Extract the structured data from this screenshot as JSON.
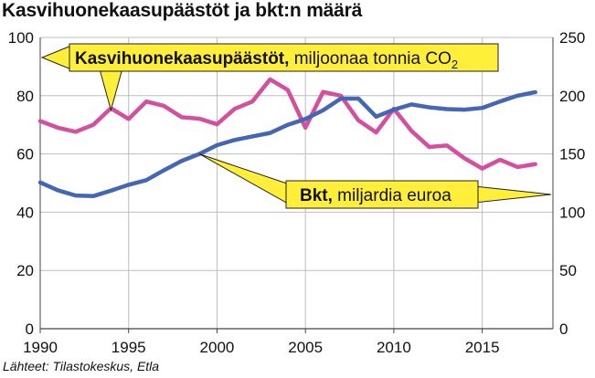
{
  "title": "Kasvihuonekaasupäästöt ja bkt:n määrä",
  "source": "Lähteet: Tilastokeskus, Etla",
  "chart_data": {
    "type": "line",
    "x": [
      1990,
      1991,
      1992,
      1993,
      1994,
      1995,
      1996,
      1997,
      1998,
      1999,
      2000,
      2001,
      2002,
      2003,
      2004,
      2005,
      2006,
      2007,
      2008,
      2009,
      2010,
      2011,
      2012,
      2013,
      2014,
      2015,
      2016,
      2017,
      2018
    ],
    "x_ticks": [
      "1990",
      "1995",
      "2000",
      "2005",
      "2010",
      "2015"
    ],
    "xlim": [
      1990,
      2019
    ],
    "y_left": {
      "lim": [
        0,
        100
      ],
      "ticks": [
        "0",
        "20",
        "40",
        "60",
        "80",
        "100"
      ]
    },
    "y_right": {
      "lim": [
        0,
        250
      ],
      "ticks": [
        "0",
        "50",
        "100",
        "150",
        "200",
        "250"
      ]
    },
    "grid": true,
    "series": [
      {
        "name": "Kasvihuonekaasupäästöt, miljoonaa tonnia CO2",
        "name_bold": "Kasvihuonekaasupäästöt,",
        "name_rest": " miljoonaa tonnia CO",
        "name_sub": "2",
        "axis": "left",
        "color": "#d44fa0",
        "values": [
          71.3,
          69.0,
          67.6,
          70.0,
          75.7,
          72.0,
          78.0,
          76.5,
          72.6,
          72.1,
          70.2,
          75.5,
          78.0,
          85.6,
          82.0,
          69.0,
          81.3,
          80.0,
          71.5,
          67.4,
          75.5,
          67.9,
          62.4,
          62.9,
          58.5,
          55.0,
          58.0,
          55.5,
          56.5
        ]
      },
      {
        "name": "Bkt, miljardia euroa",
        "name_bold": "Bkt,",
        "name_rest": " miljardia euroa",
        "axis": "right",
        "color": "#4466b4",
        "values": [
          125.5,
          118.8,
          114.3,
          113.8,
          118.5,
          123.5,
          127.5,
          136.0,
          144.0,
          150.0,
          157.5,
          162.0,
          165.0,
          168.0,
          175.0,
          180.0,
          187.5,
          197.5,
          197.5,
          182.0,
          188.0,
          192.5,
          190.0,
          188.5,
          188.0,
          189.5,
          195.0,
          200.0,
          203.0
        ]
      }
    ]
  }
}
